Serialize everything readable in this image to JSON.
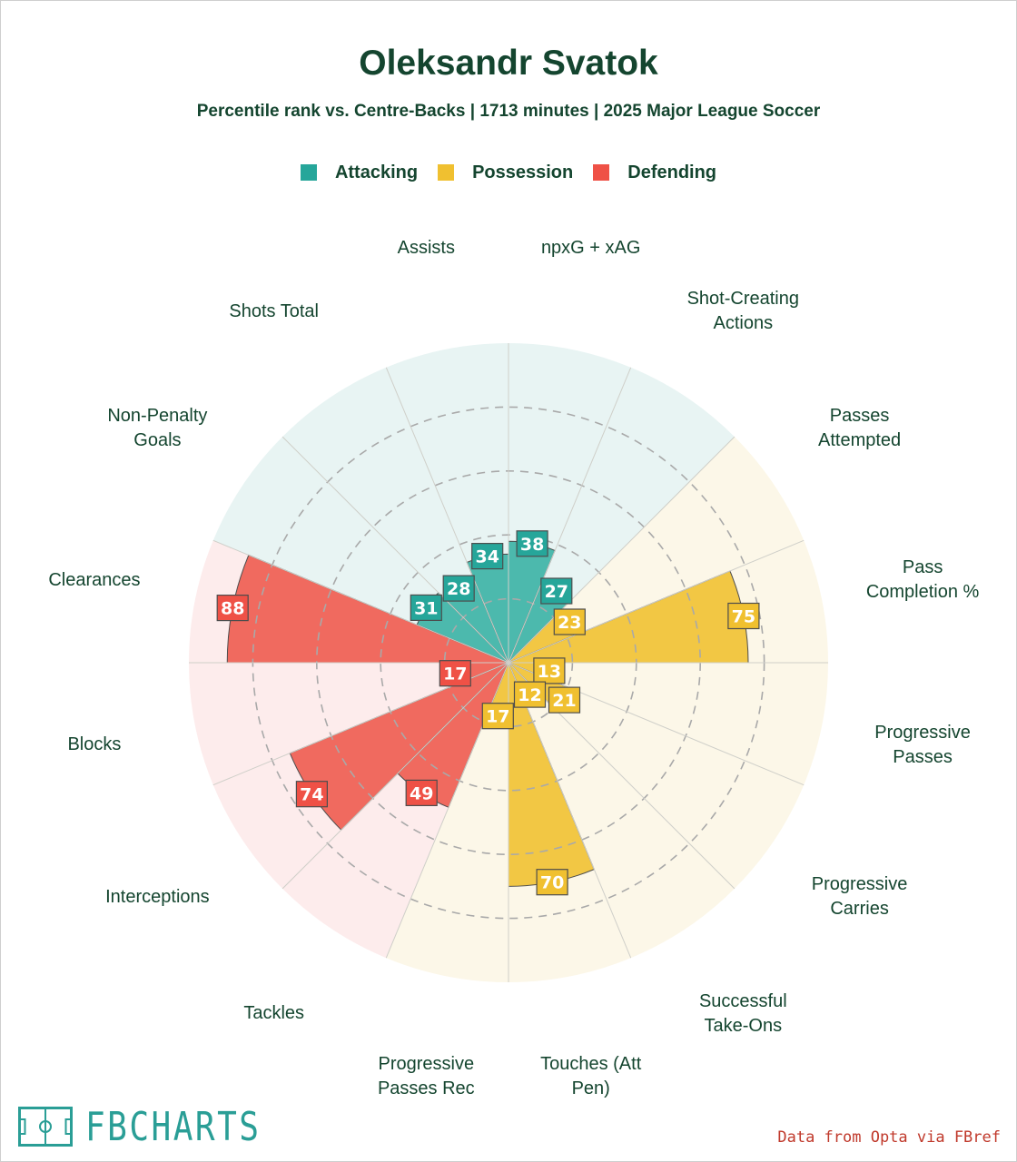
{
  "header": {
    "title": "Oleksandr Svatok",
    "subtitle": "Percentile rank vs. Centre-Backs | 1713 minutes | 2025 Major League Soccer"
  },
  "legend": [
    {
      "label": "Attacking",
      "color": "#26a69a"
    },
    {
      "label": "Possession",
      "color": "#f0c030"
    },
    {
      "label": "Defending",
      "color": "#ef5146"
    }
  ],
  "chart_data": {
    "type": "radar",
    "title": "Oleksandr Svatok",
    "subtitle": "Percentile rank vs. Centre-Backs | 1713 minutes | 2025 Major League Soccer",
    "rlim": [
      0,
      100
    ],
    "grid": true,
    "categories": [
      {
        "name": "Attacking",
        "fill": "#4cb9ad",
        "background": "#e8f4f3",
        "label_color": "#26a69a"
      },
      {
        "name": "Possession",
        "fill": "#f2c744",
        "background": "#fcf7e8",
        "label_color": "#f0c030"
      },
      {
        "name": "Defending",
        "fill": "#f06a5f",
        "background": "#fdecec",
        "label_color": "#ef5146"
      }
    ],
    "params": [
      {
        "label": "npxG + xAG",
        "value": 38,
        "category": "Attacking"
      },
      {
        "label": "Shot-Creating\nActions",
        "value": 27,
        "category": "Attacking"
      },
      {
        "label": "Passes\nAttempted",
        "value": 23,
        "category": "Possession"
      },
      {
        "label": "Pass\nCompletion %",
        "value": 75,
        "category": "Possession"
      },
      {
        "label": "Progressive\nPasses",
        "value": 13,
        "category": "Possession"
      },
      {
        "label": "Progressive\nCarries",
        "value": 21,
        "category": "Possession"
      },
      {
        "label": "Successful\nTake-Ons",
        "value": 12,
        "category": "Possession"
      },
      {
        "label": "Touches (Att\nPen)",
        "value": 70,
        "category": "Possession"
      },
      {
        "label": "Progressive\nPasses Rec",
        "value": 17,
        "category": "Possession"
      },
      {
        "label": "Tackles",
        "value": 49,
        "category": "Defending"
      },
      {
        "label": "Interceptions",
        "value": 74,
        "category": "Defending"
      },
      {
        "label": "Blocks",
        "value": 17,
        "category": "Defending"
      },
      {
        "label": "Clearances",
        "value": 88,
        "category": "Defending"
      },
      {
        "label": "Non-Penalty\nGoals",
        "value": 31,
        "category": "Attacking"
      },
      {
        "label": "Shots Total",
        "value": 28,
        "category": "Attacking"
      },
      {
        "label": "Assists",
        "value": 34,
        "category": "Attacking"
      }
    ]
  },
  "footer": {
    "brand": "FBCHARTS",
    "source": "Data from Opta via FBref"
  }
}
